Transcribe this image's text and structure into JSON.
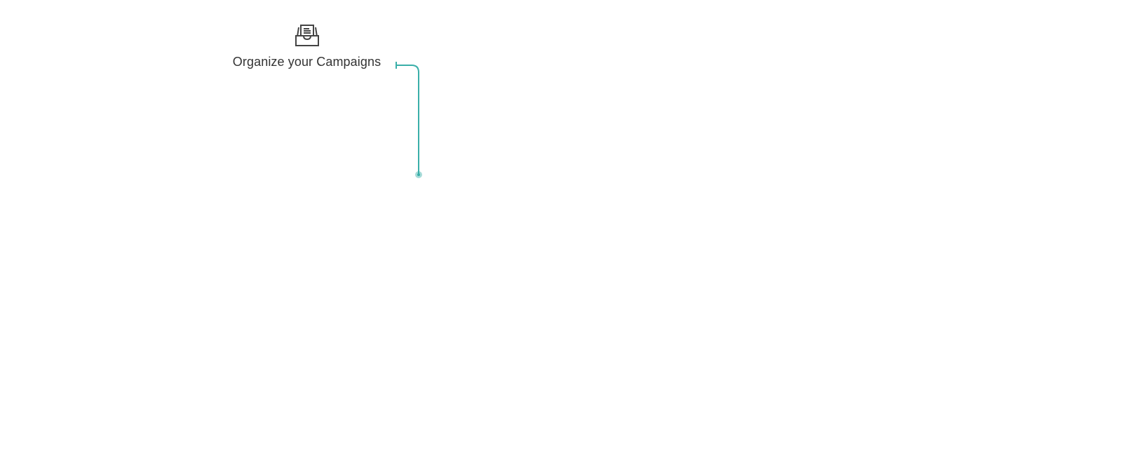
{
  "feature": {
    "icon": "inbox-tray-icon",
    "title": "Organize your Campaigns"
  },
  "colors": {
    "text": "#333333",
    "accent": "#3aafa9"
  }
}
